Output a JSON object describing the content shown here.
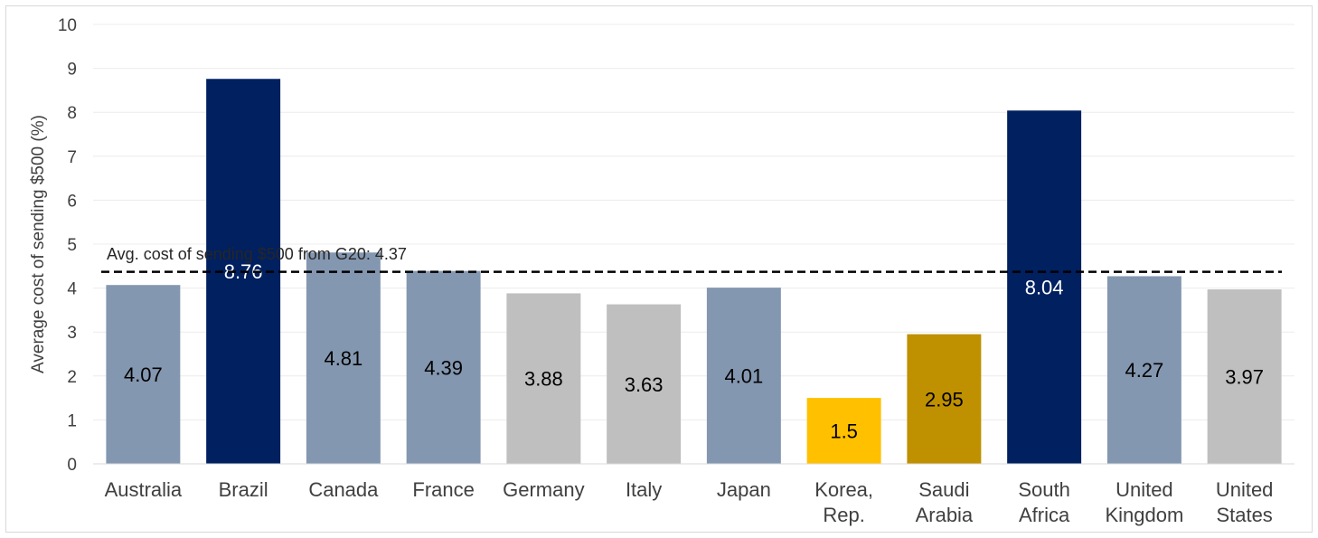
{
  "chart_data": {
    "type": "bar",
    "ylabel": "Average cost of sending $500 (%)",
    "ylim": [
      0,
      10
    ],
    "yticks": [
      "0",
      "1",
      "2",
      "3",
      "4",
      "5",
      "6",
      "7",
      "8",
      "9",
      "10"
    ],
    "grid": true,
    "categories": [
      [
        "Australia"
      ],
      [
        "Brazil"
      ],
      [
        "Canada"
      ],
      [
        "France"
      ],
      [
        "Germany"
      ],
      [
        "Italy"
      ],
      [
        "Japan"
      ],
      [
        "Korea,",
        "Rep."
      ],
      [
        "Saudi",
        "Arabia"
      ],
      [
        "South",
        "Africa"
      ],
      [
        "United",
        "Kingdom"
      ],
      [
        "United",
        "States"
      ]
    ],
    "values": [
      4.07,
      8.76,
      4.81,
      4.39,
      3.88,
      3.63,
      4.01,
      1.5,
      2.95,
      8.04,
      4.27,
      3.97
    ],
    "data_labels": [
      "4.07",
      "8.76",
      "4.81",
      "4.39",
      "3.88",
      "3.63",
      "4.01",
      "1.5",
      "2.95",
      "8.04",
      "4.27",
      "3.97"
    ],
    "bar_colors": [
      "#8497b0",
      "#002060",
      "#8497b0",
      "#8497b0",
      "#bfbfbf",
      "#bfbfbf",
      "#8497b0",
      "#ffc000",
      "#bf9000",
      "#002060",
      "#8497b0",
      "#bfbfbf"
    ],
    "label_colors": [
      "#000000",
      "#ffffff",
      "#000000",
      "#000000",
      "#000000",
      "#000000",
      "#000000",
      "#000000",
      "#000000",
      "#ffffff",
      "#000000",
      "#000000"
    ],
    "reference_line": {
      "value": 4.37,
      "label": "Avg. cost of sending $500 from G20: 4.37",
      "style": "dashed",
      "color": "#000000"
    }
  }
}
